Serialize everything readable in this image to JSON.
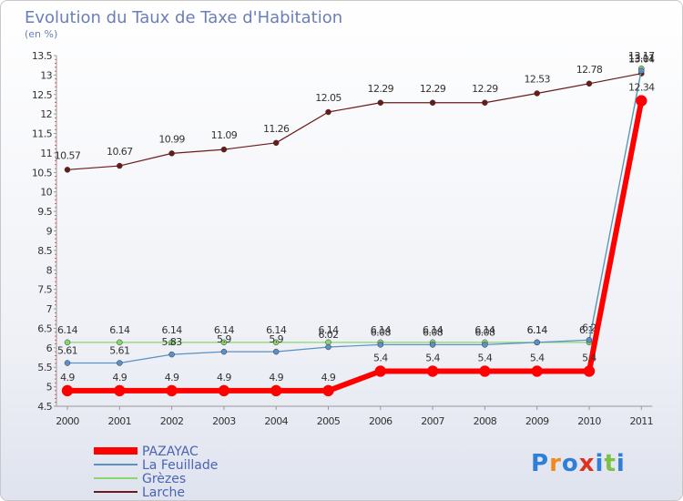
{
  "chart_data": {
    "type": "line",
    "title": "Evolution du Taux de Taxe d'Habitation",
    "subtitle": "(en %)",
    "x": [
      "2000",
      "2001",
      "2002",
      "2003",
      "2004",
      "2005",
      "2006",
      "2007",
      "2008",
      "2009",
      "2010",
      "2011"
    ],
    "ylim": [
      4.5,
      13.5
    ],
    "yticks": [
      "4.5",
      "5",
      "5.5",
      "6",
      "6.5",
      "7",
      "7.5",
      "8",
      "8.5",
      "9",
      "9.5",
      "10",
      "10.5",
      "11",
      "11.5",
      "12",
      "12.5",
      "13",
      "13.5"
    ],
    "grid": false,
    "legend_position": "bottom-left",
    "series": [
      {
        "name": "Larche",
        "color": "#6b1a1a",
        "width": 1.2,
        "values": [
          10.57,
          10.67,
          10.99,
          11.09,
          11.26,
          12.05,
          12.29,
          12.29,
          12.29,
          12.53,
          12.78,
          13.04
        ],
        "labels": [
          "10.57",
          "10.67",
          "10.99",
          "11.09",
          "11.26",
          "12.05",
          "12.29",
          "12.29",
          "12.29",
          "12.53",
          "12.78",
          "13.04"
        ]
      },
      {
        "name": "Grèzes",
        "color": "#88d870",
        "width": 1.2,
        "values": [
          6.14,
          6.14,
          6.14,
          6.14,
          6.14,
          6.14,
          6.14,
          6.14,
          6.14,
          6.14,
          6.14,
          13.17
        ],
        "labels": [
          "6.14",
          "6.14",
          "6.14",
          "6.14",
          "6.14",
          "6.14",
          "6.14",
          "6.14",
          "6.14",
          "6.14",
          "6.14",
          "13.17"
        ]
      },
      {
        "name": "La Feuillade",
        "color": "#5a8fc8",
        "width": 1.2,
        "values": [
          5.61,
          5.61,
          5.83,
          5.9,
          5.9,
          6.02,
          6.08,
          6.08,
          6.08,
          6.14,
          6.2,
          13.11
        ],
        "labels": [
          "5.61",
          "5.61",
          "5.83",
          "5.9",
          "5.9",
          "6.02",
          "6.08",
          "6.08",
          "6.08",
          "6.14",
          "6.2",
          "13.11"
        ]
      },
      {
        "name": "PAZAYAC",
        "color": "#ff0000",
        "width": 6,
        "values": [
          4.9,
          4.9,
          4.9,
          4.9,
          4.9,
          4.9,
          5.4,
          5.4,
          5.4,
          5.4,
          5.4,
          12.34
        ],
        "labels": [
          "4.9",
          "4.9",
          "4.9",
          "4.9",
          "4.9",
          "4.9",
          "5.4",
          "5.4",
          "5.4",
          "5.4",
          "5.4",
          "12.34"
        ]
      }
    ],
    "legend": [
      "PAZAYAC",
      "La Feuillade",
      "Grèzes",
      "Larche"
    ]
  },
  "logo": {
    "text": "Proxiti",
    "colors": [
      "#2f7fd8",
      "#f08a1e",
      "#2f7fd8",
      "#e0311f",
      "#2f7fd8",
      "#7cc143",
      "#2f7fd8"
    ]
  }
}
